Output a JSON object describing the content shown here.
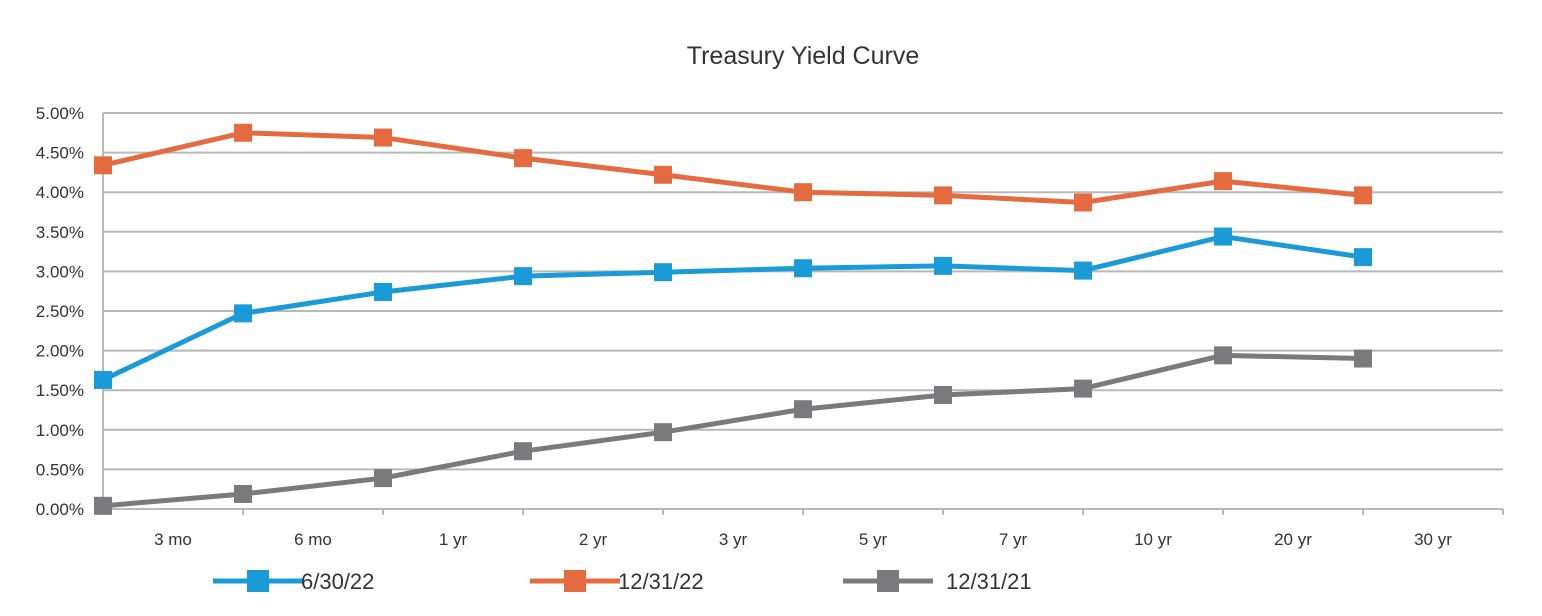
{
  "chart_data": {
    "type": "line",
    "title": "Treasury Yield Curve",
    "xlabel": "",
    "ylabel": "",
    "ylim": [
      0,
      5
    ],
    "ytick_step": 0.5,
    "ytick_labels": [
      "0.00%",
      "0.50%",
      "1.00%",
      "1.50%",
      "2.00%",
      "2.50%",
      "3.00%",
      "3.50%",
      "4.00%",
      "4.50%",
      "5.00%"
    ],
    "categories": [
      "3 mo",
      "6 mo",
      "1 yr",
      "2 yr",
      "3 yr",
      "5 yr",
      "7 yr",
      "10 yr",
      "20 yr",
      "30 yr"
    ],
    "grid": "horizontal",
    "legend_position": "bottom",
    "series": [
      {
        "name": "6/30/22",
        "color": "#1a9ad6",
        "values": [
          1.63,
          2.47,
          2.74,
          2.94,
          2.99,
          3.04,
          3.07,
          3.01,
          3.44,
          3.18
        ]
      },
      {
        "name": "12/31/22",
        "color": "#e46a3f",
        "values": [
          4.34,
          4.75,
          4.69,
          4.43,
          4.22,
          4.0,
          3.96,
          3.87,
          4.14,
          3.96
        ]
      },
      {
        "name": "12/31/21",
        "color": "#7a797b",
        "values": [
          0.04,
          0.19,
          0.39,
          0.73,
          0.97,
          1.26,
          1.44,
          1.52,
          1.94,
          1.9
        ]
      }
    ]
  }
}
